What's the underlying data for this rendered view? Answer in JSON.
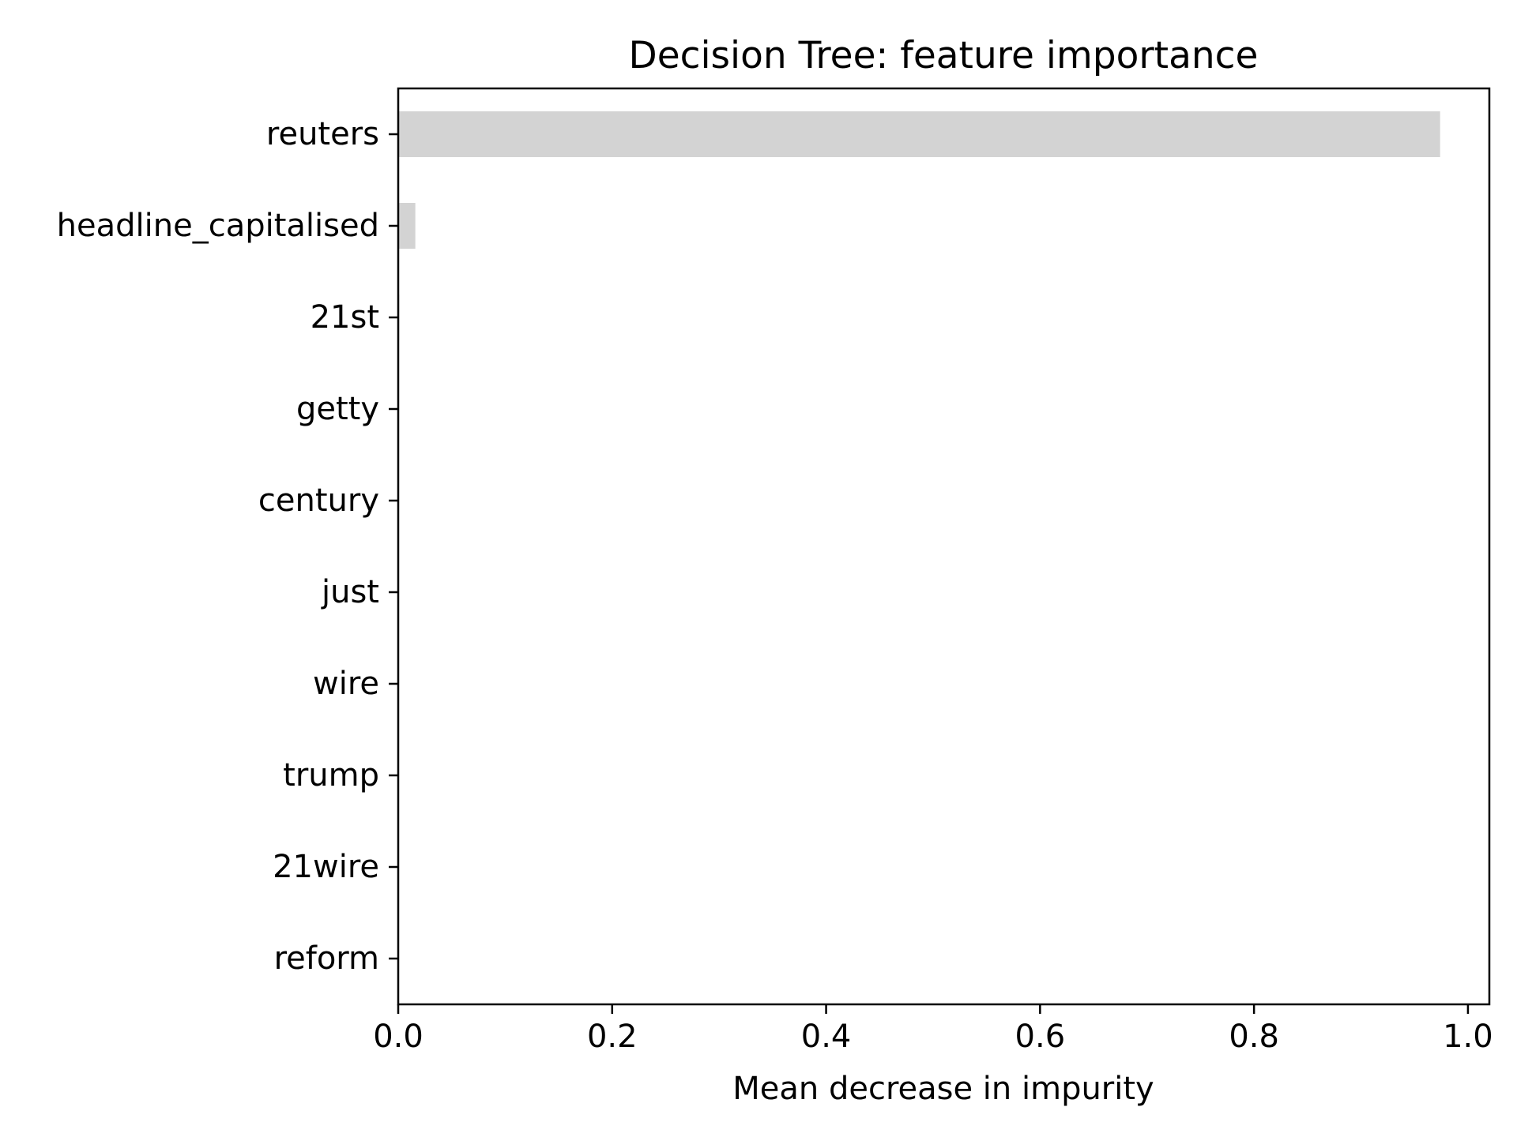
{
  "chart_data": {
    "type": "bar",
    "orientation": "horizontal",
    "title": "Decision Tree: feature importance",
    "xlabel": "Mean decrease in impurity",
    "ylabel": "",
    "xlim": [
      0,
      1.02
    ],
    "xticks": [
      "0.0",
      "0.2",
      "0.4",
      "0.6",
      "0.8",
      "1.0"
    ],
    "xtick_values": [
      0,
      0.2,
      0.4,
      0.6,
      0.8,
      1.0
    ],
    "categories": [
      "reuters",
      "headline_capitalised",
      "21st",
      "getty",
      "century",
      "just",
      "wire",
      "trump",
      "21wire",
      "reform"
    ],
    "values": [
      0.974,
      0.016,
      0.001,
      0.0,
      0.0,
      0.0,
      0.0,
      0.0,
      0.0,
      0.0
    ],
    "bar_color": "#d3d3d3",
    "grid": false,
    "legend": "none"
  }
}
